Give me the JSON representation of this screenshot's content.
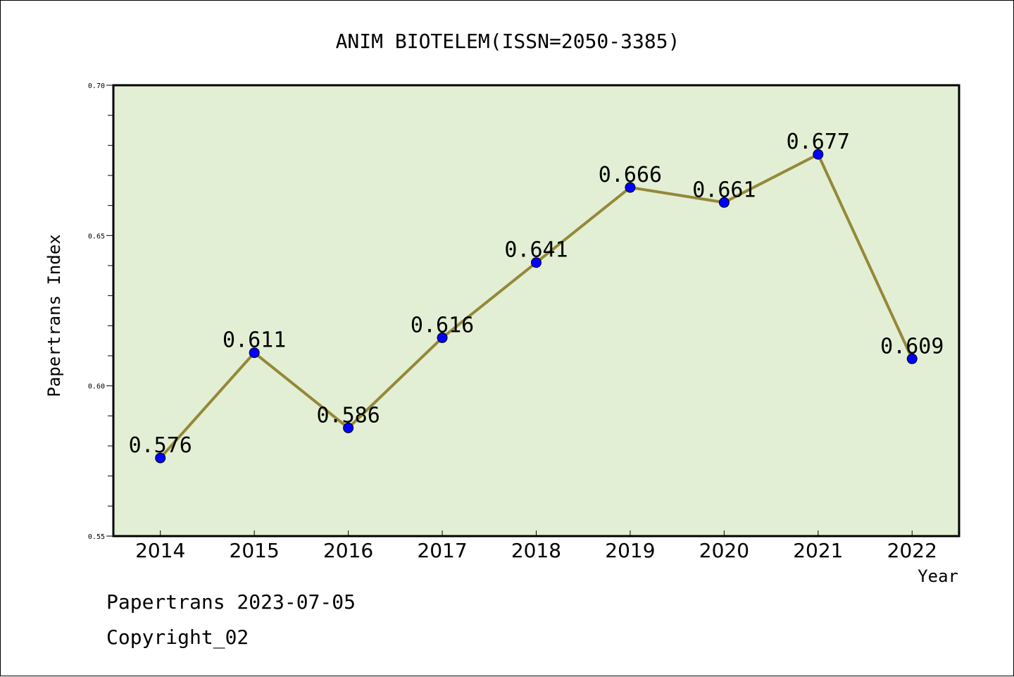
{
  "chart_data": {
    "type": "line",
    "title": "ANIM BIOTELEM(ISSN=2050-3385)",
    "xlabel": "Year",
    "ylabel": "Papertrans Index",
    "categories": [
      "2014",
      "2015",
      "2016",
      "2017",
      "2018",
      "2019",
      "2020",
      "2021",
      "2022"
    ],
    "series": [
      {
        "values": [
          0.576,
          0.611,
          0.586,
          0.616,
          0.641,
          0.666,
          0.661,
          0.677,
          0.609
        ],
        "data_labels": [
          "0.576",
          "0.611",
          "0.586",
          "0.616",
          "0.641",
          "0.666",
          "0.661",
          "0.677",
          "0.609"
        ]
      }
    ],
    "ylim": [
      0.55,
      0.7
    ],
    "y_ticks": [
      "0.55",
      "0.60",
      "0.65",
      "0.70"
    ],
    "grid": false,
    "colors": {
      "plot_background": "#e2efd4",
      "line": "#948838",
      "marker": "#0000ff"
    }
  },
  "footer": {
    "line1": "Papertrans 2023-07-05",
    "line2": "Copyright_02"
  }
}
